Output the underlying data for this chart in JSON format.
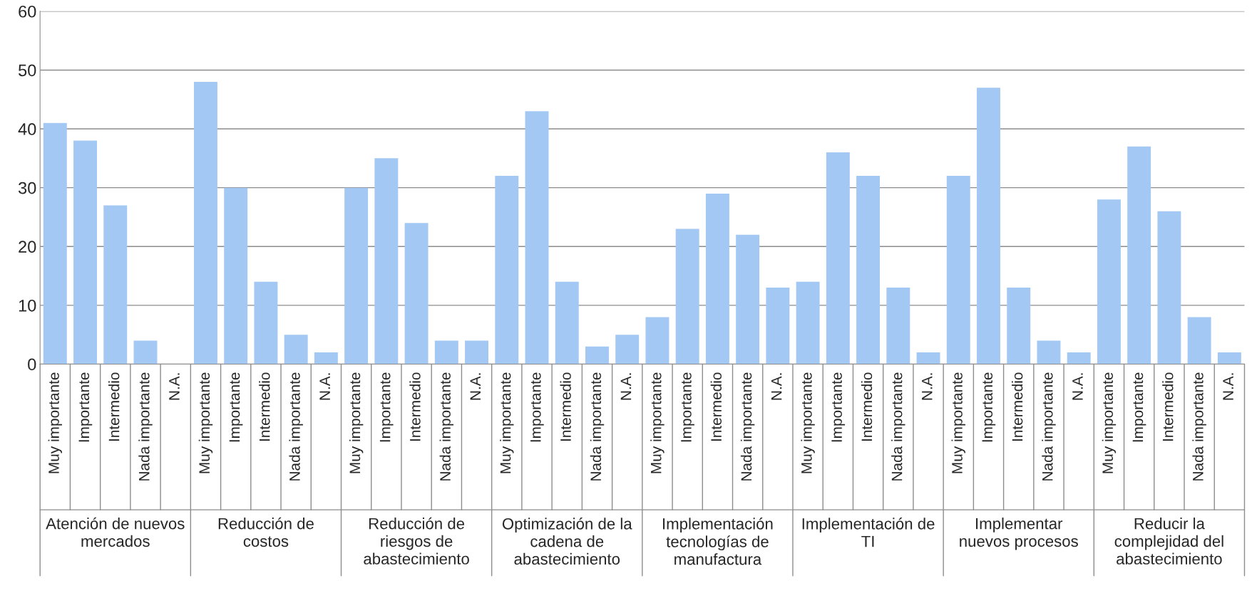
{
  "chart_data": {
    "type": "bar",
    "categories": [
      "Muy importante",
      "Importante",
      "Intermedio",
      "Nada importante",
      "N.A.",
      "Muy importante",
      "Importante",
      "Intermedio",
      "Nada importante",
      "N.A.",
      "Muy importante",
      "Importante",
      "Intermedio",
      "Nada importante",
      "N.A.",
      "Muy importante",
      "Importante",
      "Intermedio",
      "Nada importante",
      "N.A.",
      "Muy importante",
      "Importante",
      "Intermedio",
      "Nada importante",
      "N.A.",
      "Muy importante",
      "Importante",
      "Intermedio",
      "Nada importante",
      "N.A.",
      "Muy importante",
      "Importante",
      "Intermedio",
      "Nada importante",
      "N.A.",
      "Muy importante",
      "Importante",
      "Intermedio",
      "Nada importante",
      "N.A."
    ],
    "values": [
      41,
      38,
      27,
      4,
      0,
      48,
      30,
      14,
      5,
      2,
      30,
      35,
      24,
      4,
      4,
      32,
      43,
      14,
      3,
      5,
      8,
      23,
      29,
      22,
      13,
      14,
      36,
      32,
      13,
      2,
      32,
      47,
      13,
      4,
      2,
      28,
      37,
      26,
      8,
      2
    ],
    "color": "#a3c8f4",
    "annotations": [
      "Atención de nuevos mercados",
      "Reducción de costos",
      "Reducción de riesgos de abastecimiento",
      "Optimización de la cadena de abastecimiento",
      "Implementación tecnologías de manufactura",
      "Implementación de TI",
      "Implementar nuevos procesos",
      "Reducir la complejidad del abastecimiento"
    ],
    "ylim": [
      0,
      60
    ],
    "yticks": [
      0,
      10,
      20,
      30,
      40,
      50,
      60
    ],
    "grid": "y",
    "legend": false
  }
}
